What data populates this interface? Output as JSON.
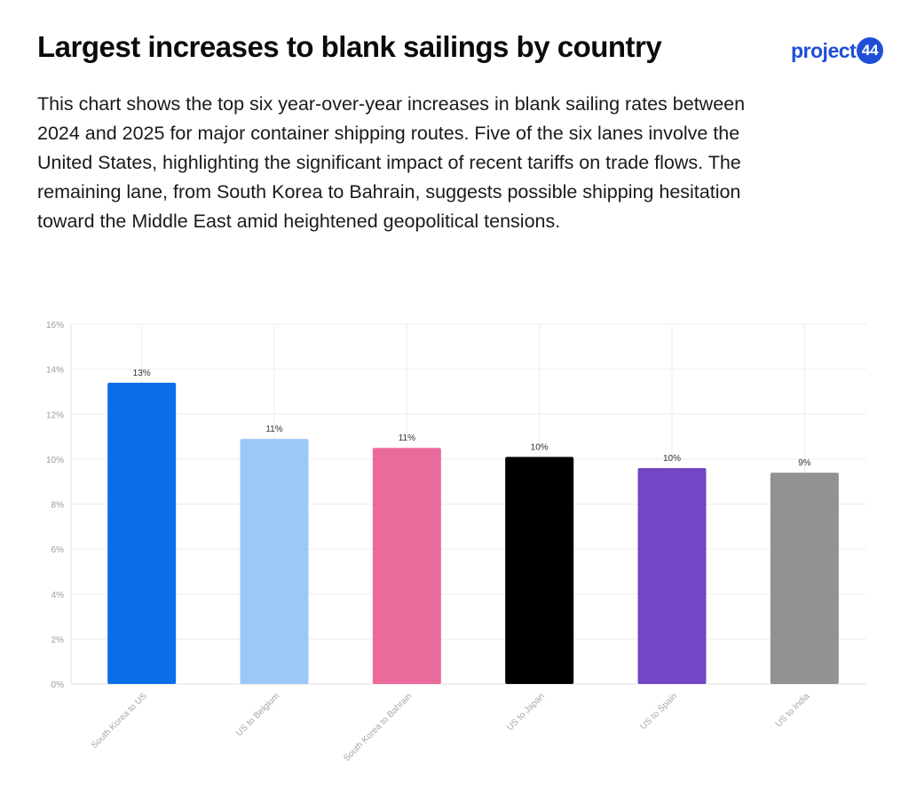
{
  "header": {
    "title": "Largest increases to blank sailings by country",
    "logo_word": "project",
    "logo_number": "44"
  },
  "description": "This chart shows the top six year-over-year increases in blank sailing rates between 2024 and 2025 for major container shipping routes. Five of the six lanes involve the United States, highlighting the significant impact of recent tariffs on trade flows. The remaining lane, from South Korea to Bahrain, suggests possible shipping hesitation toward the Middle East amid heightened geopolitical tensions.",
  "chart_data": {
    "type": "bar",
    "title": "",
    "xlabel": "",
    "ylabel": "",
    "categories": [
      "South Korea to US",
      "US to Belgium",
      "South Korea to Bahrain",
      "US to Japan",
      "US to Spain",
      "US to India"
    ],
    "values": [
      13.4,
      10.9,
      10.5,
      10.1,
      9.6,
      9.4
    ],
    "data_labels": [
      "13%",
      "11%",
      "11%",
      "10%",
      "10%",
      "9%"
    ],
    "colors": [
      "#0a6fe8",
      "#9cc8f7",
      "#ea6a9b",
      "#000000",
      "#7445c4",
      "#929292"
    ],
    "ylim": [
      0,
      16
    ],
    "yticks": [
      0,
      2,
      4,
      6,
      8,
      10,
      12,
      14,
      16
    ],
    "ytick_labels": [
      "0%",
      "2%",
      "4%",
      "6%",
      "8%",
      "10%",
      "12%",
      "14%",
      "16%"
    ],
    "grid": true,
    "legend": "none"
  }
}
